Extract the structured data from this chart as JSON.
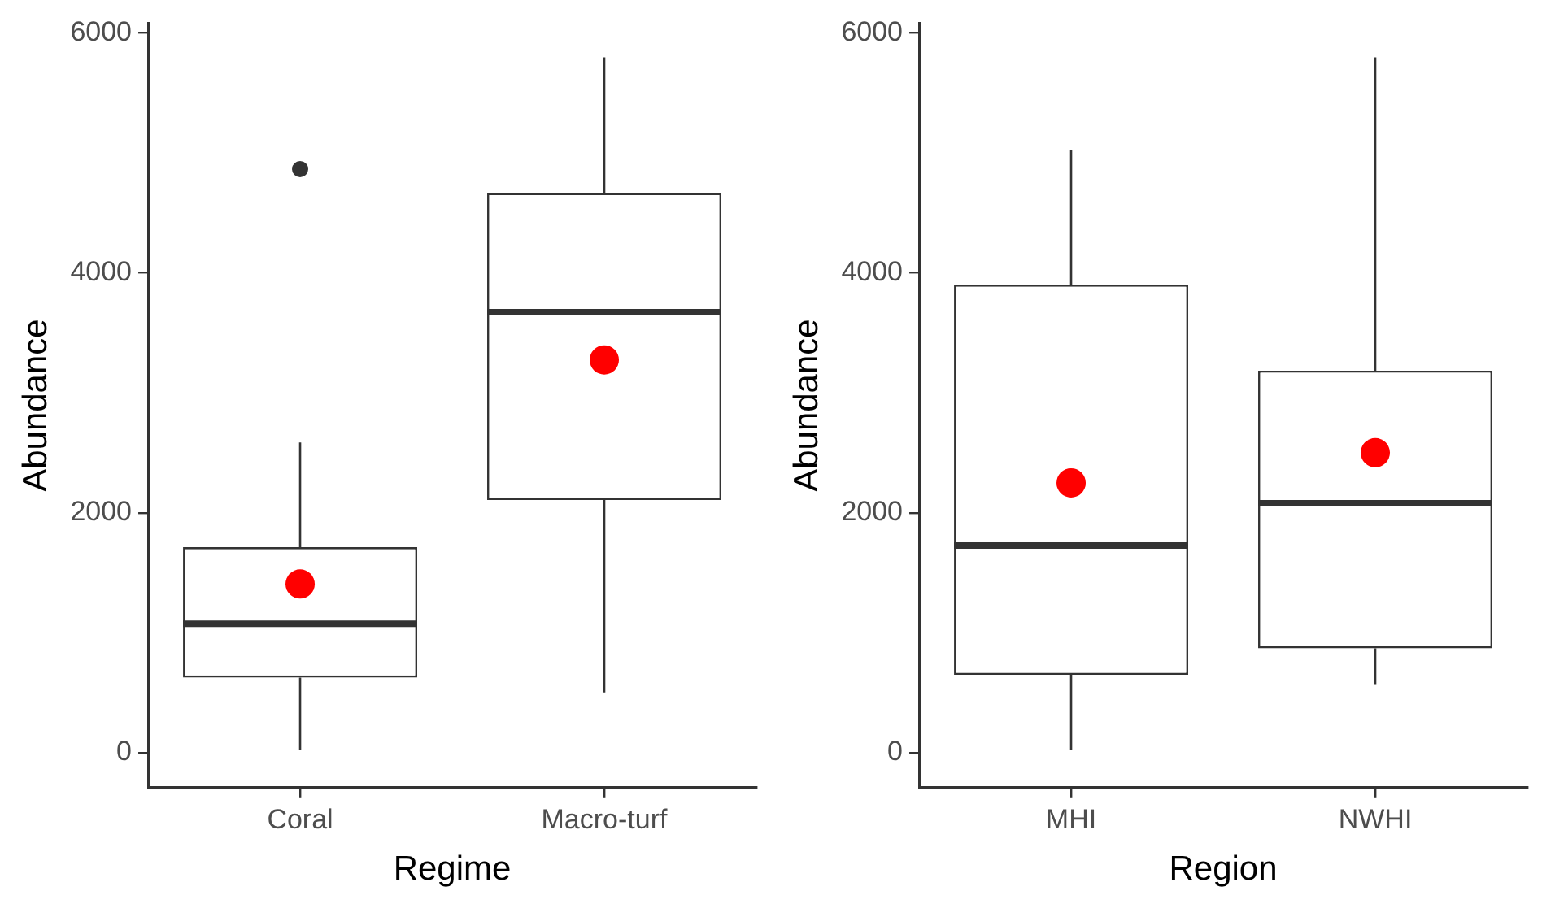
{
  "chart_data": [
    {
      "type": "box",
      "categories": [
        "Coral",
        "Macro-turf"
      ],
      "xlabel": "Regime",
      "ylabel": "Abundance",
      "ylim": [
        -290,
        6080
      ],
      "yticks": [
        0,
        2000,
        4000,
        6000
      ],
      "grid": false,
      "legend": false,
      "boxes": [
        {
          "low": 20,
          "q1": 627,
          "median": 1076,
          "q3": 1713,
          "high": 2586,
          "mean": 1407,
          "outliers": [
            4864
          ]
        },
        {
          "low": 503,
          "q1": 2106,
          "median": 3672,
          "q3": 4664,
          "high": 5794,
          "mean": 3274
        }
      ]
    },
    {
      "type": "box",
      "categories": [
        "MHI",
        "NWHI"
      ],
      "xlabel": "Region",
      "ylabel": "Abundance",
      "ylim": [
        -290,
        6080
      ],
      "yticks": [
        0,
        2000,
        4000,
        6000
      ],
      "grid": false,
      "legend": false,
      "boxes": [
        {
          "low": 20,
          "q1": 650,
          "median": 1727,
          "q3": 3900,
          "high": 5024,
          "mean": 2249
        },
        {
          "low": 572,
          "q1": 870,
          "median": 2079,
          "q3": 3184,
          "high": 5794,
          "mean": 2501
        }
      ]
    }
  ]
}
